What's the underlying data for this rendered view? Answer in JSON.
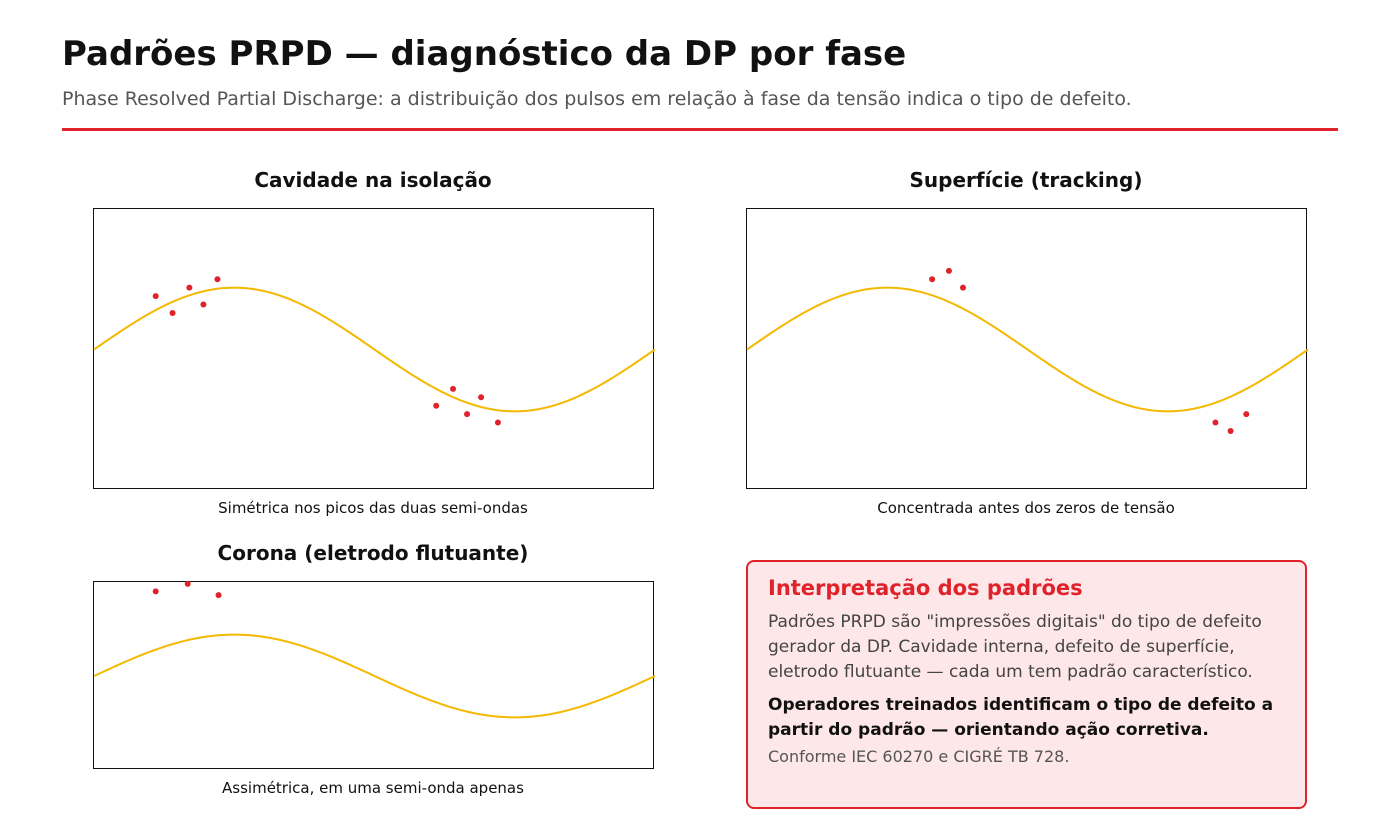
{
  "header": {
    "title": "Padrões PRPD — diagnóstico da DP por fase",
    "subtitle": "Phase Resolved Partial Discharge: a distribuição dos pulsos em relação à fase da tensão indica o tipo de defeito."
  },
  "colors": {
    "accent": "#e0222b",
    "sine": "#f5b800",
    "pulse": "#e0222b",
    "info_bg": "#fde7e8"
  },
  "panels": [
    {
      "title": "Cavidade na isolação",
      "caption": "Simétrica nos picos das duas semi-ondas",
      "pulses": [
        {
          "phase": 0.11,
          "level": 0.31
        },
        {
          "phase": 0.14,
          "level": 0.37
        },
        {
          "phase": 0.17,
          "level": 0.28
        },
        {
          "phase": 0.195,
          "level": 0.34
        },
        {
          "phase": 0.22,
          "level": 0.25
        },
        {
          "phase": 0.61,
          "level": 0.7
        },
        {
          "phase": 0.64,
          "level": 0.64
        },
        {
          "phase": 0.665,
          "level": 0.73
        },
        {
          "phase": 0.69,
          "level": 0.67
        },
        {
          "phase": 0.72,
          "level": 0.76
        }
      ]
    },
    {
      "title": "Superfície (tracking)",
      "caption": "Concentrada antes dos zeros de tensão",
      "pulses": [
        {
          "phase": 0.33,
          "level": 0.25
        },
        {
          "phase": 0.36,
          "level": 0.22
        },
        {
          "phase": 0.385,
          "level": 0.28
        },
        {
          "phase": 0.835,
          "level": 0.76
        },
        {
          "phase": 0.862,
          "level": 0.79
        },
        {
          "phase": 0.89,
          "level": 0.73
        }
      ]
    },
    {
      "title": "Corona (eletrodo flutuante)",
      "caption": "Assimétrica, em uma semi-onda apenas",
      "pulses": [
        {
          "phase": 0.11,
          "level": 0.05
        },
        {
          "phase": 0.167,
          "level": 0.01
        },
        {
          "phase": 0.222,
          "level": 0.07
        }
      ]
    }
  ],
  "info": {
    "title": "Interpretação dos padrões",
    "body": "Padrões PRPD são \"impressões digitais\" do tipo de defeito gerador da DP. Cavidade interna, defeito de superfície, eletrodo flutuante — cada um tem padrão característico.",
    "bold": "Operadores treinados identificam o tipo de defeito a partir do padrão — orientando ação corretiva.",
    "reference": "Conforme IEC 60270 e CIGRÉ TB 728."
  }
}
